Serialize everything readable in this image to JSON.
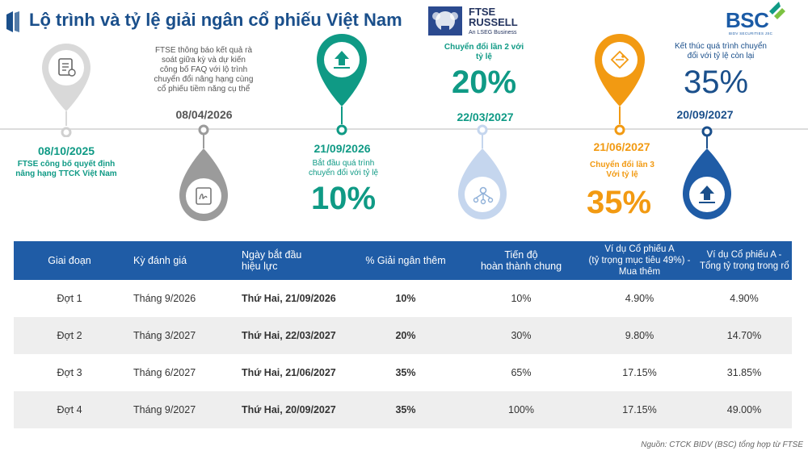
{
  "header": {
    "title": "Lộ trình và tỷ lệ giải ngân cổ phiếu Việt Nam",
    "ftse_line1": "FTSE",
    "ftse_line2": "RUSSELL",
    "ftse_line3": "An LSEG Business",
    "bsc_name": "BSC",
    "bsc_sub": "BIDV SECURITIES JSC"
  },
  "colors": {
    "teal": "#0f9a85",
    "navy": "#1a4f8b",
    "orange": "#f29a12",
    "gray": "#9b9b9b",
    "light_blue": "#c5d6ee",
    "table_header": "#1f5ca6"
  },
  "timeline": {
    "m1": {
      "date": "08/10/2025",
      "desc_line1": "FTSE công bố quyết định",
      "desc_line2": "nâng hạng TTCK Việt Nam",
      "icon": "document-icon"
    },
    "m2": {
      "date": "08/04/2026",
      "desc_line1": "FTSE thông báo kết quả rà",
      "desc_line2": "soát giữa kỳ và dự kiến",
      "desc_line3": "công bố FAQ với lộ trình",
      "desc_line4": "chuyển đổi nâng hạng cùng",
      "desc_line5": "cổ phiếu tiềm năng cụ thể",
      "icon": "signature-icon"
    },
    "m3": {
      "date": "21/09/2026",
      "desc_line1": "Bắt đầu quá trình",
      "desc_line2": "chuyển đổi với tỷ lệ",
      "pct": "10%",
      "icon": "upload-icon"
    },
    "m4": {
      "date": "22/03/2027",
      "desc_line1": "Chuyển đổi lần 2 với",
      "desc_line2": "tỷ lệ",
      "pct": "20%",
      "icon": "network-icon"
    },
    "m5": {
      "date": "21/06/2027",
      "desc_line1": "Chuyển đổi lần 3",
      "desc_line2": "Với tỷ lệ",
      "pct": "35%",
      "icon": "tag-icon"
    },
    "m6": {
      "date": "20/09/2027",
      "desc_line1": "Kết thúc quá trình chuyển",
      "desc_line2": "đổi với tỷ lệ còn lại",
      "pct": "35%",
      "icon": "upload-icon"
    }
  },
  "table": {
    "headers": {
      "h1": "Giai đoạn",
      "h2": "Kỳ đánh giá",
      "h3a": "Ngày bắt đầu",
      "h3b": "hiệu lực",
      "h4": "% Giải ngân thêm",
      "h5a": "Tiến độ",
      "h5b": "hoàn thành chung",
      "h6a": "Ví dụ Cổ phiếu A",
      "h6b": "(tỷ trọng mục tiêu 49%) -",
      "h6c": "Mua thêm",
      "h7a": "Ví dụ Cổ phiếu A -",
      "h7b": "Tổng tỷ trọng trong rổ"
    },
    "rows": [
      {
        "phase": "Đợt 1",
        "review": "Tháng 9/2026",
        "date": "Thứ Hai, 21/09/2026",
        "add": "10%",
        "progress": "10%",
        "buy": "4.90%",
        "total": "4.90%"
      },
      {
        "phase": "Đợt 2",
        "review": "Tháng 3/2027",
        "date": "Thứ Hai, 22/03/2027",
        "add": "20%",
        "progress": "30%",
        "buy": "9.80%",
        "total": "14.70%"
      },
      {
        "phase": "Đợt 3",
        "review": "Tháng 6/2027",
        "date": "Thứ Hai, 21/06/2027",
        "add": "35%",
        "progress": "65%",
        "buy": "17.15%",
        "total": "31.85%"
      },
      {
        "phase": "Đợt 4",
        "review": "Tháng 9/2027",
        "date": "Thứ Hai, 20/09/2027",
        "add": "35%",
        "progress": "100%",
        "buy": "17.15%",
        "total": "49.00%"
      }
    ]
  },
  "source": "Nguồn: CTCK BIDV (BSC) tổng hợp từ FTSE"
}
